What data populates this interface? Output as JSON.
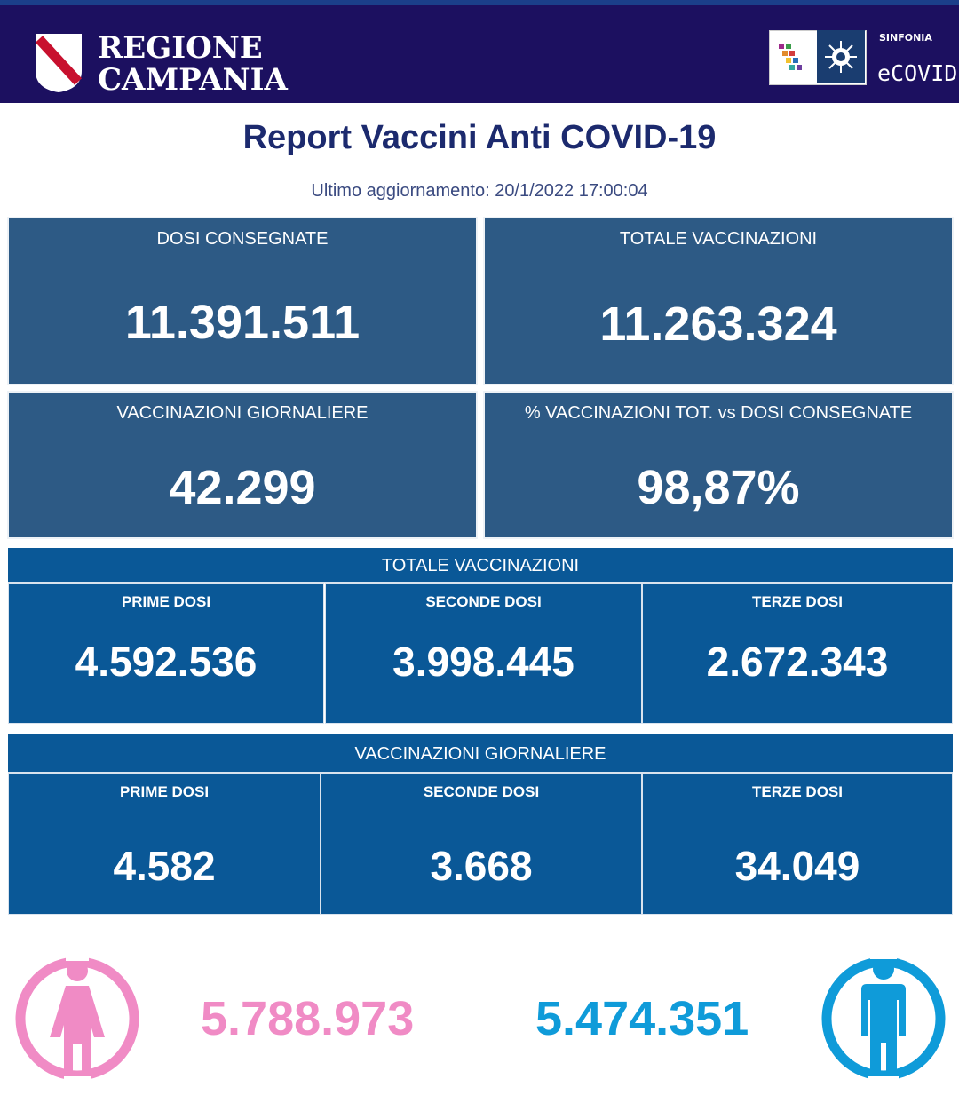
{
  "header": {
    "region_line1": "REGIONE",
    "region_line2": "CAMPANIA",
    "sinfonia": "SINFONIA",
    "ecovid": "eCOVID"
  },
  "title": "Report Vaccini Anti COVID-19",
  "updated": "Ultimo aggiornamento: 20/1/2022  17:00:04",
  "cards": {
    "dosi_consegnate": {
      "label": "DOSI  CONSEGNATE",
      "value": "11.391.511"
    },
    "totale_vaccinazioni": {
      "label": "TOTALE VACCINAZIONI",
      "value": "11.263.324"
    },
    "vaccinazioni_giornaliere": {
      "label": "VACCINAZIONI GIORNALIERE",
      "value": "42.299"
    },
    "percentuale": {
      "label": "% VACCINAZIONI TOT. vs DOSI CONSEGNATE",
      "value": "98,87%"
    }
  },
  "totale_section": {
    "title": "TOTALE VACCINAZIONI",
    "prime": {
      "label": "PRIME DOSI",
      "value": "4.592.536"
    },
    "seconde": {
      "label": "SECONDE DOSI",
      "value": "3.998.445"
    },
    "terze": {
      "label": "TERZE DOSI",
      "value": "2.672.343"
    }
  },
  "giornaliere_section": {
    "title": "VACCINAZIONI GIORNALIERE",
    "prime": {
      "label": "PRIME DOSI",
      "value": "4.582"
    },
    "seconde": {
      "label": "SECONDE DOSI",
      "value": "3.668"
    },
    "terze": {
      "label": "TERZE DOSI",
      "value": "34.049"
    }
  },
  "gender": {
    "female_value": "5.788.973",
    "male_value": "5.474.351",
    "female_color": "#f08bc5",
    "male_color": "#0f9bd9",
    "female_icon": "female-person-icon",
    "male_icon": "male-person-icon"
  },
  "colors": {
    "header_bg": "#1c1060",
    "card_bg": "#2d5a85",
    "section_bg": "#0a5897",
    "title_color": "#1c2a6e"
  }
}
